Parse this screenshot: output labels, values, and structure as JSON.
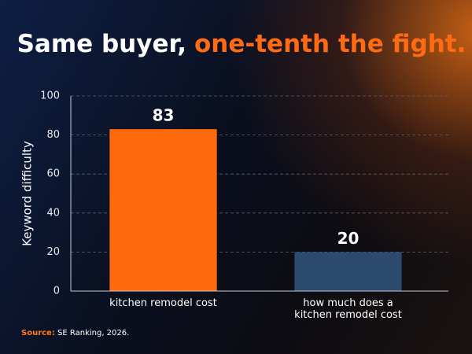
{
  "chart_data": {
    "type": "bar",
    "title": {
      "lead": "Same buyer,",
      "highlight": "one-tenth the fight."
    },
    "y_label": "Keyword difficulty",
    "categories": [
      "kitchen remodel cost",
      "how much does a kitchen remodel cost"
    ],
    "values": [
      83,
      20
    ],
    "colors": [
      "#ff6a0d",
      "#2c4a6e"
    ],
    "ylim": [
      0,
      100
    ],
    "yticks": [
      0,
      20,
      40,
      60,
      80,
      100
    ],
    "grid": true,
    "source": {
      "lead": "Source:",
      "text": "SE Ranking, 2026."
    }
  }
}
